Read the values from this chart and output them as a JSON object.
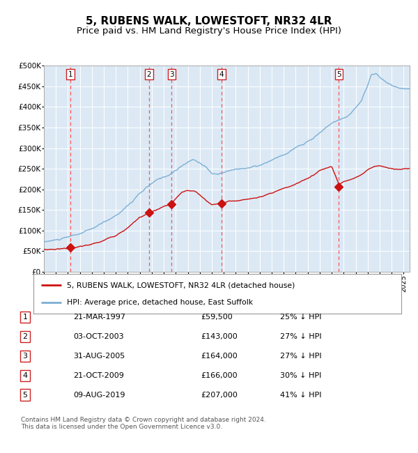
{
  "title": "5, RUBENS WALK, LOWESTOFT, NR32 4LR",
  "subtitle": "Price paid vs. HM Land Registry's House Price Index (HPI)",
  "title_fontsize": 11,
  "subtitle_fontsize": 9.5,
  "background_color": "#dce9f5",
  "plot_bg_color": "#dce9f5",
  "fig_bg_color": "#ffffff",
  "hpi_color": "#7bafd4",
  "price_color": "#cc1111",
  "marker_color": "#cc1111",
  "grid_color": "#ffffff",
  "dashed_color": "#ff5555",
  "ylim": [
    0,
    500000
  ],
  "yticks": [
    0,
    50000,
    100000,
    150000,
    200000,
    250000,
    300000,
    350000,
    400000,
    450000,
    500000
  ],
  "ytick_labels": [
    "£0",
    "£50K",
    "£100K",
    "£150K",
    "£200K",
    "£250K",
    "£300K",
    "£350K",
    "£400K",
    "£450K",
    "£500K"
  ],
  "xstart": 1995.0,
  "xend": 2025.5,
  "purchases": [
    {
      "num": 1,
      "year": 1997.22,
      "price": 59500
    },
    {
      "num": 2,
      "year": 2003.75,
      "price": 143000
    },
    {
      "num": 3,
      "year": 2005.66,
      "price": 164000
    },
    {
      "num": 4,
      "year": 2009.8,
      "price": 166000
    },
    {
      "num": 5,
      "year": 2019.6,
      "price": 207000
    }
  ],
  "legend_line1": "5, RUBENS WALK, LOWESTOFT, NR32 4LR (detached house)",
  "legend_line2": "HPI: Average price, detached house, East Suffolk",
  "table": [
    {
      "num": 1,
      "date": "21-MAR-1997",
      "price": "£59,500",
      "hpi": "25% ↓ HPI"
    },
    {
      "num": 2,
      "date": "03-OCT-2003",
      "price": "£143,000",
      "hpi": "27% ↓ HPI"
    },
    {
      "num": 3,
      "date": "31-AUG-2005",
      "price": "£164,000",
      "hpi": "27% ↓ HPI"
    },
    {
      "num": 4,
      "date": "21-OCT-2009",
      "price": "£166,000",
      "hpi": "30% ↓ HPI"
    },
    {
      "num": 5,
      "date": "09-AUG-2019",
      "price": "£207,000",
      "hpi": "41% ↓ HPI"
    }
  ],
  "footer": "Contains HM Land Registry data © Crown copyright and database right 2024.\nThis data is licensed under the Open Government Licence v3.0."
}
